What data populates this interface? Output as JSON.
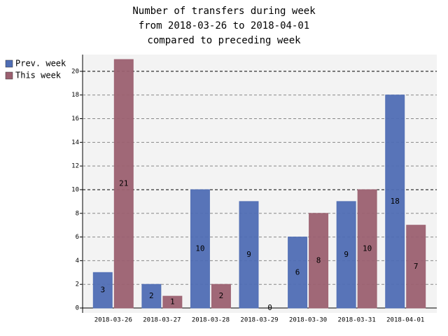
{
  "chart_data": {
    "type": "bar",
    "title": [
      "Number of transfers during week",
      "from 2018-03-26 to 2018-04-01",
      "compared to preceding week"
    ],
    "categories": [
      "2018-03-26",
      "2018-03-27",
      "2018-03-28",
      "2018-03-29",
      "2018-03-30",
      "2018-03-31",
      "2018-04-01"
    ],
    "series": [
      {
        "name": "Prev. week",
        "color": "#4f6db4",
        "values": [
          3,
          2,
          10,
          9,
          6,
          9,
          18
        ]
      },
      {
        "name": "This week",
        "color": "#9b6070",
        "values": [
          21,
          1,
          2,
          0,
          8,
          10,
          7
        ]
      }
    ],
    "ylim": [
      0,
      21
    ],
    "yticks": [
      0,
      2,
      4,
      6,
      8,
      10,
      12,
      14,
      16,
      18,
      20
    ],
    "grid": true
  }
}
